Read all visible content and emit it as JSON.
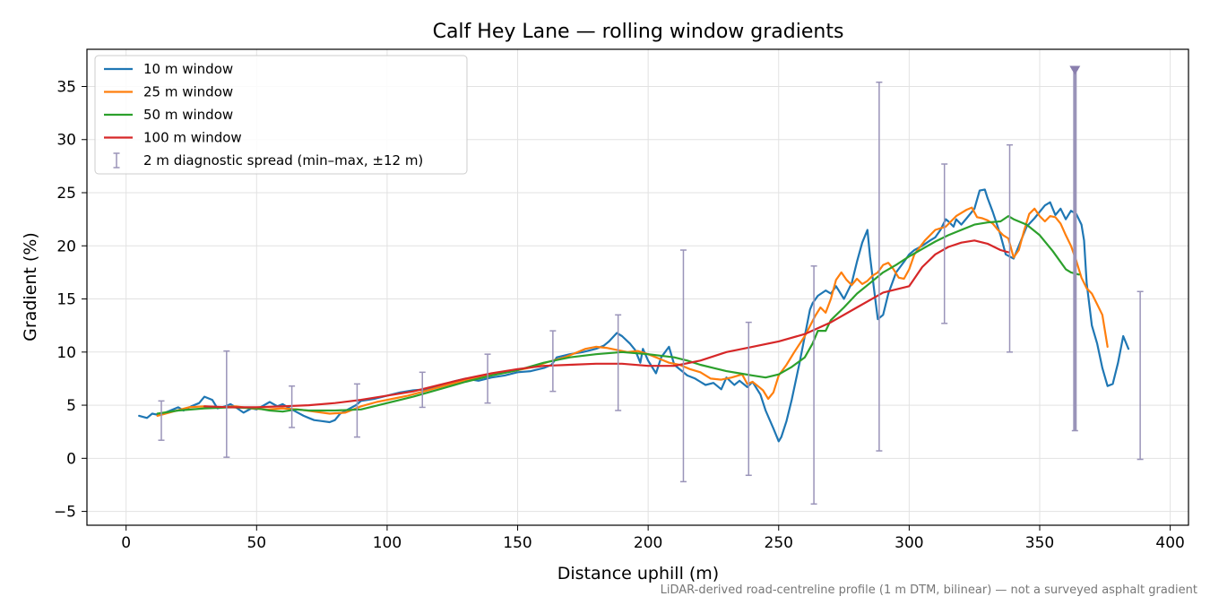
{
  "chart_data": {
    "type": "line",
    "title": "Calf Hey Lane — rolling window gradients",
    "xlabel": "Distance uphill (m)",
    "ylabel": "Gradient (%)",
    "xlim": [
      -15,
      407
    ],
    "ylim": [
      -6.3,
      38.5
    ],
    "xticks": [
      0,
      50,
      100,
      150,
      200,
      250,
      300,
      350,
      400
    ],
    "yticks": [
      -5,
      0,
      5,
      10,
      15,
      20,
      25,
      30,
      35
    ],
    "grid": true,
    "legend_position": "top-left",
    "series": [
      {
        "name": "10 m window",
        "color": "#1f77b4",
        "x": [
          5,
          8,
          10,
          12,
          15,
          18,
          20,
          22,
          25,
          28,
          30,
          33,
          35,
          38,
          40,
          42,
          45,
          48,
          50,
          55,
          58,
          60,
          62,
          65,
          68,
          70,
          72,
          75,
          78,
          80,
          82,
          85,
          88,
          90,
          95,
          100,
          105,
          110,
          115,
          120,
          125,
          130,
          135,
          140,
          145,
          150,
          155,
          160,
          163,
          165,
          170,
          175,
          180,
          183,
          185,
          188,
          190,
          193,
          195,
          197,
          198,
          200,
          203,
          205,
          208,
          210,
          213,
          215,
          218,
          220,
          222,
          225,
          228,
          230,
          233,
          235,
          238,
          240,
          243,
          245,
          248,
          250,
          251,
          253,
          255,
          258,
          260,
          262,
          263,
          265,
          268,
          270,
          272,
          275,
          278,
          280,
          282,
          284,
          285,
          287,
          288,
          290,
          292,
          295,
          298,
          300,
          302,
          305,
          308,
          310,
          312,
          314,
          315,
          317,
          318,
          320,
          322,
          325,
          327,
          329,
          330,
          332,
          335,
          337,
          340,
          342,
          345,
          348,
          350,
          352,
          354,
          356,
          358,
          360,
          362,
          364,
          366,
          367,
          368,
          370,
          372,
          374,
          376,
          378,
          380,
          382,
          384
        ],
        "y": [
          4.0,
          3.8,
          4.2,
          4.1,
          4.3,
          4.6,
          4.8,
          4.5,
          4.9,
          5.2,
          5.8,
          5.5,
          4.7,
          4.9,
          5.1,
          4.8,
          4.3,
          4.7,
          4.6,
          5.3,
          4.9,
          5.1,
          4.8,
          4.4,
          4.0,
          3.8,
          3.6,
          3.5,
          3.4,
          3.6,
          4.2,
          4.6,
          5.0,
          5.4,
          5.6,
          5.9,
          6.2,
          6.4,
          6.5,
          6.8,
          7.2,
          7.5,
          7.3,
          7.6,
          7.8,
          8.1,
          8.2,
          8.5,
          8.8,
          9.5,
          9.8,
          10.0,
          10.3,
          10.6,
          11.0,
          11.8,
          11.5,
          10.8,
          10.2,
          9.0,
          10.3,
          9.2,
          8.0,
          9.5,
          10.5,
          8.8,
          8.2,
          7.8,
          7.5,
          7.2,
          6.9,
          7.1,
          6.5,
          7.6,
          6.9,
          7.3,
          6.7,
          7.2,
          6.0,
          4.5,
          2.8,
          1.6,
          2.0,
          3.5,
          5.5,
          9.0,
          11.5,
          14.0,
          14.6,
          15.3,
          15.8,
          15.5,
          16.2,
          15.0,
          16.5,
          18.5,
          20.3,
          21.5,
          19.0,
          15.0,
          13.1,
          13.5,
          15.5,
          17.5,
          18.5,
          19.2,
          19.6,
          20.0,
          20.5,
          20.8,
          21.5,
          22.5,
          22.3,
          21.8,
          22.5,
          22.0,
          22.6,
          23.5,
          25.2,
          25.3,
          24.5,
          23.2,
          21.0,
          19.2,
          18.8,
          20.0,
          21.8,
          22.6,
          23.2,
          23.8,
          24.1,
          22.9,
          23.5,
          22.5,
          23.3,
          23.0,
          22.0,
          20.5,
          16.5,
          12.5,
          10.8,
          8.5,
          6.8,
          7.0,
          9.0,
          11.5,
          10.3
        ]
      },
      {
        "name": "25 m window",
        "color": "#ff7f0e",
        "x": [
          12,
          18,
          24,
          30,
          36,
          42,
          48,
          54,
          60,
          66,
          72,
          78,
          84,
          90,
          96,
          102,
          108,
          114,
          120,
          126,
          132,
          138,
          144,
          150,
          156,
          162,
          168,
          172,
          176,
          180,
          184,
          188,
          192,
          196,
          200,
          204,
          208,
          212,
          216,
          220,
          224,
          228,
          232,
          236,
          238,
          240,
          242,
          244,
          246,
          248,
          250,
          253,
          256,
          260,
          264,
          266,
          268,
          270,
          272,
          274,
          276,
          278,
          280,
          282,
          284,
          286,
          288,
          290,
          292,
          294,
          296,
          298,
          300,
          302,
          306,
          310,
          314,
          318,
          322,
          324,
          326,
          328,
          330,
          332,
          334,
          336,
          338,
          340,
          342,
          344,
          346,
          348,
          350,
          352,
          354,
          356,
          358,
          360,
          362,
          364,
          366,
          368,
          370,
          372,
          374,
          376
        ],
        "y": [
          4.0,
          4.4,
          4.8,
          4.9,
          4.8,
          4.9,
          4.7,
          4.6,
          4.7,
          4.6,
          4.4,
          4.2,
          4.3,
          4.9,
          5.3,
          5.6,
          5.9,
          6.3,
          6.7,
          7.1,
          7.5,
          7.8,
          8.0,
          8.3,
          8.6,
          9.1,
          9.5,
          9.9,
          10.3,
          10.5,
          10.4,
          10.2,
          10.0,
          10.1,
          9.8,
          9.4,
          9.0,
          8.8,
          8.4,
          8.1,
          7.5,
          7.4,
          7.6,
          7.9,
          7.0,
          7.2,
          6.8,
          6.4,
          5.6,
          6.2,
          7.8,
          8.8,
          10.0,
          11.5,
          13.4,
          14.2,
          13.7,
          15.0,
          16.8,
          17.5,
          16.8,
          16.3,
          16.9,
          16.4,
          16.7,
          17.2,
          17.5,
          18.2,
          18.4,
          17.8,
          17.0,
          16.9,
          17.8,
          19.2,
          20.5,
          21.5,
          21.8,
          22.8,
          23.4,
          23.6,
          22.7,
          22.6,
          22.4,
          22.1,
          21.5,
          21.0,
          20.7,
          18.9,
          19.6,
          21.4,
          23.0,
          23.5,
          22.8,
          22.3,
          22.8,
          22.7,
          22.1,
          21.0,
          20.0,
          18.6,
          17.0,
          16.0,
          15.5,
          14.5,
          13.5,
          10.5
        ]
      },
      {
        "name": "50 m window",
        "color": "#2ca02c",
        "x": [
          12,
          20,
          30,
          40,
          50,
          55,
          60,
          65,
          70,
          80,
          90,
          100,
          110,
          120,
          130,
          140,
          150,
          160,
          170,
          180,
          190,
          200,
          210,
          215,
          220,
          225,
          230,
          235,
          240,
          245,
          250,
          255,
          260,
          263,
          265,
          268,
          270,
          275,
          280,
          285,
          290,
          295,
          300,
          305,
          310,
          315,
          320,
          325,
          330,
          335,
          338,
          340,
          345,
          350,
          355,
          360,
          362,
          365
        ],
        "y": [
          4.2,
          4.5,
          4.7,
          4.8,
          4.7,
          4.5,
          4.4,
          4.6,
          4.5,
          4.5,
          4.6,
          5.2,
          5.8,
          6.5,
          7.2,
          7.8,
          8.3,
          9.0,
          9.5,
          9.8,
          10.0,
          9.8,
          9.5,
          9.2,
          8.8,
          8.5,
          8.2,
          8.0,
          7.8,
          7.6,
          7.9,
          8.6,
          9.5,
          10.8,
          12.0,
          12.0,
          13.0,
          14.2,
          15.5,
          16.5,
          17.5,
          18.2,
          19.0,
          19.7,
          20.4,
          21.0,
          21.5,
          22.0,
          22.2,
          22.3,
          22.8,
          22.5,
          22.0,
          21.0,
          19.5,
          17.8,
          17.5,
          17.3
        ]
      },
      {
        "name": "100 m window",
        "color": "#d62728",
        "x": [
          30,
          40,
          50,
          60,
          70,
          80,
          90,
          100,
          110,
          120,
          130,
          140,
          150,
          160,
          170,
          180,
          190,
          200,
          210,
          220,
          230,
          240,
          250,
          260,
          270,
          280,
          290,
          300,
          305,
          310,
          315,
          320,
          325,
          330,
          335,
          338
        ],
        "y": [
          4.9,
          4.8,
          4.8,
          4.9,
          5.0,
          5.2,
          5.5,
          5.9,
          6.3,
          6.9,
          7.5,
          8.0,
          8.4,
          8.7,
          8.8,
          8.9,
          8.9,
          8.7,
          8.7,
          9.2,
          10.0,
          10.5,
          11.0,
          11.7,
          12.8,
          14.2,
          15.6,
          16.2,
          18.0,
          19.2,
          19.9,
          20.3,
          20.5,
          20.2,
          19.6,
          19.4
        ]
      }
    ],
    "diagnostic_spread": {
      "name": "2 m diagnostic spread (min–max, ±12 m)",
      "color": "#9a94b9",
      "x": [
        13.5,
        38.5,
        63.5,
        88.5,
        113.5,
        138.5,
        163.5,
        188.5,
        213.5,
        238.5,
        263.5,
        288.5,
        313.5,
        338.5,
        363.5,
        388.5
      ],
      "low": [
        1.7,
        0.1,
        2.9,
        2.0,
        4.8,
        5.2,
        6.3,
        4.5,
        -2.2,
        -1.6,
        -4.3,
        0.7,
        12.7,
        10.0,
        2.6,
        -0.1
      ],
      "high": [
        5.4,
        10.1,
        6.8,
        7.0,
        8.1,
        9.8,
        12.0,
        13.5,
        19.6,
        12.8,
        18.1,
        35.4,
        27.7,
        29.5,
        36.6,
        15.7
      ]
    }
  },
  "footnote": "LiDAR-derived road-centreline profile (1 m DTM, bilinear) — not a surveyed asphalt gradient"
}
